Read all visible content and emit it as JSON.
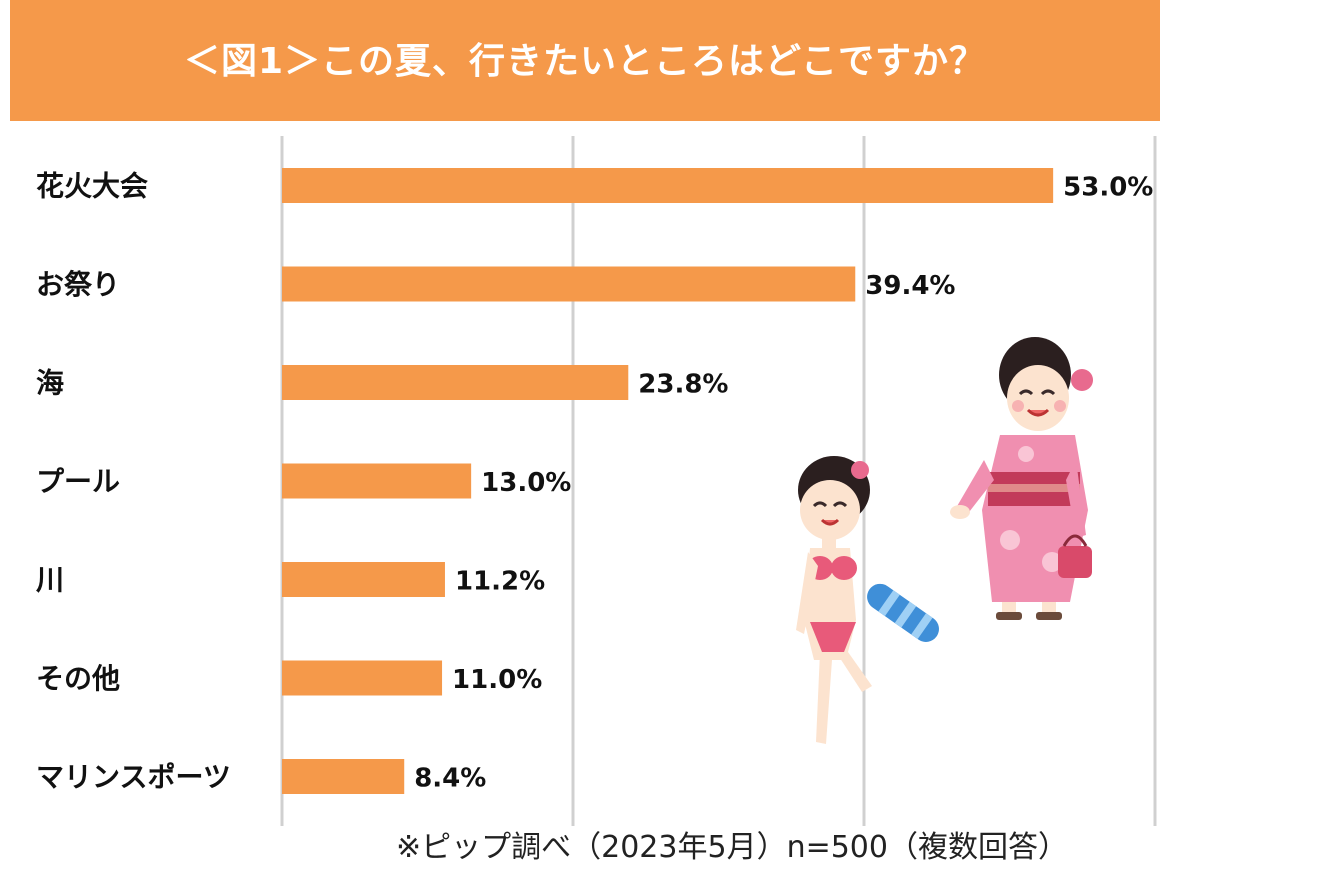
{
  "title": "＜図1＞この夏、行きたいところはどこですか？",
  "note": "※ピップ調べ（2023年5月）n=500（複数回答）",
  "colors": {
    "bar": "#F5994A",
    "title_bg": "#F5994A",
    "grid": "#D0D0D0"
  },
  "chart_data": {
    "type": "bar",
    "orientation": "horizontal",
    "categories": [
      "花火大会",
      "お祭り",
      "海",
      "プール",
      "川",
      "その他",
      "マリンスポーツ"
    ],
    "values": [
      53.0,
      39.4,
      23.8,
      13.0,
      11.2,
      11.0,
      8.4
    ],
    "labels": [
      "53.0%",
      "39.4%",
      "23.8%",
      "13.0%",
      "11.2%",
      "11.0%",
      "8.4%"
    ],
    "unit": "%",
    "xlim": [
      0,
      60
    ],
    "grid": true,
    "legend": "none"
  }
}
